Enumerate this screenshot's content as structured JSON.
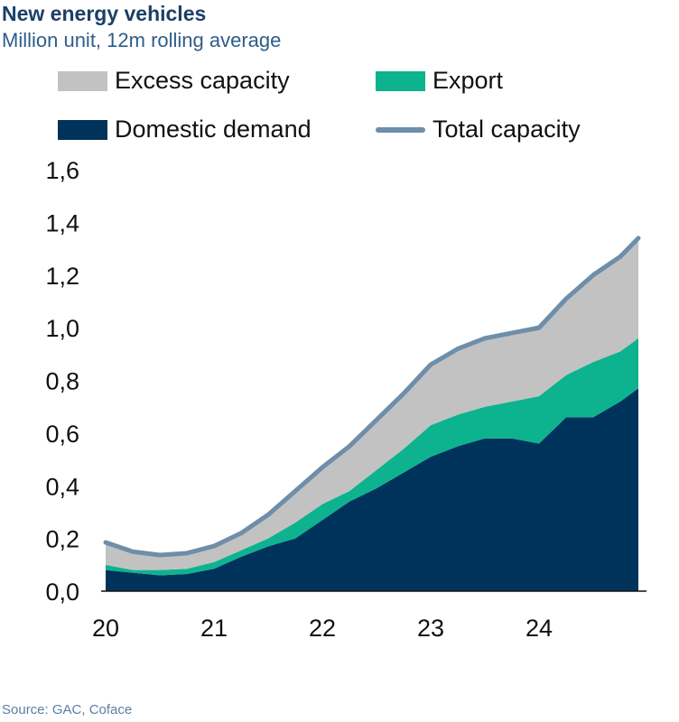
{
  "title": "New energy vehicles",
  "subtitle": "Million unit, 12m rolling average",
  "source": "Source: GAC, Coface",
  "legend": {
    "excess": "Excess capacity",
    "export": "Export",
    "domestic": "Domestic demand",
    "total": "Total capacity"
  },
  "colors": {
    "domestic": "#00335c",
    "export": "#0db38e",
    "excess": "#c2c2c2",
    "total": "#6e8ea9"
  },
  "chart_data": {
    "type": "area",
    "stacked": true,
    "title": "New energy vehicles",
    "subtitle": "Million unit, 12m rolling average",
    "ylim": [
      0,
      1.6
    ],
    "yticks": [
      "0,0",
      "0,2",
      "0,4",
      "0,6",
      "0,8",
      "1,0",
      "1,2",
      "1,4",
      "1,6"
    ],
    "xticks": [
      "20",
      "21",
      "22",
      "23",
      "24"
    ],
    "grid": false,
    "legend_position": "top",
    "x": [
      "2020-01",
      "2020-04",
      "2020-07",
      "2020-10",
      "2021-01",
      "2021-04",
      "2021-07",
      "2021-10",
      "2022-01",
      "2022-04",
      "2022-07",
      "2022-10",
      "2023-01",
      "2023-04",
      "2023-07",
      "2023-10",
      "2024-01",
      "2024-04",
      "2024-07",
      "2024-10",
      "2024-12"
    ],
    "series": [
      {
        "name": "Domestic demand",
        "kind": "area",
        "values": [
          0.08,
          0.07,
          0.06,
          0.065,
          0.085,
          0.13,
          0.17,
          0.2,
          0.27,
          0.34,
          0.39,
          0.45,
          0.51,
          0.55,
          0.58,
          0.58,
          0.56,
          0.66,
          0.66,
          0.72,
          0.77
        ]
      },
      {
        "name": "Export",
        "kind": "area",
        "values": [
          0.02,
          0.01,
          0.02,
          0.02,
          0.025,
          0.025,
          0.03,
          0.06,
          0.06,
          0.04,
          0.07,
          0.09,
          0.12,
          0.12,
          0.12,
          0.14,
          0.18,
          0.16,
          0.21,
          0.19,
          0.19
        ]
      },
      {
        "name": "Excess capacity",
        "kind": "area",
        "values": [
          0.085,
          0.07,
          0.057,
          0.059,
          0.061,
          0.065,
          0.09,
          0.12,
          0.14,
          0.17,
          0.19,
          0.21,
          0.23,
          0.25,
          0.26,
          0.26,
          0.26,
          0.29,
          0.33,
          0.36,
          0.38
        ]
      },
      {
        "name": "Total capacity",
        "kind": "line",
        "values": [
          0.185,
          0.15,
          0.137,
          0.144,
          0.171,
          0.22,
          0.29,
          0.38,
          0.47,
          0.55,
          0.65,
          0.75,
          0.86,
          0.92,
          0.96,
          0.98,
          1.0,
          1.11,
          1.2,
          1.27,
          1.34
        ]
      }
    ]
  }
}
